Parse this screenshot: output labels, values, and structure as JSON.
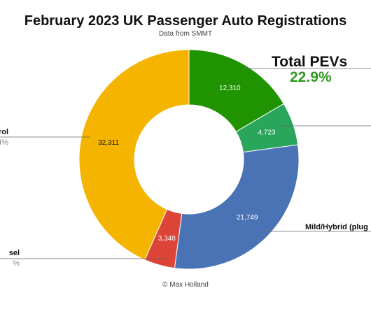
{
  "chart_data": {
    "type": "pie",
    "title": "February 2023 UK Passenger Auto Registrations",
    "subtitle": "Data from SMMT",
    "total_label": "Total PEVs",
    "total_value": "22.9%",
    "credit": "© Max Holland",
    "slices": [
      {
        "value": 12310,
        "label": "12,310",
        "color": "#1f9400",
        "text_color": "#ffffff"
      },
      {
        "value": 4723,
        "label": "4,723",
        "color": "#2aa55c",
        "text_color": "#ffffff"
      },
      {
        "value": 21749,
        "label": "21,749",
        "color": "#4a73b6",
        "text_color": "#ffffff",
        "legend": "Mild/Hybrid (plug",
        "legend_sub": ""
      },
      {
        "value": 3348,
        "label": "3,348",
        "color": "#db4437",
        "text_color": "#ffffff",
        "legend": "sel",
        "legend_sub": "%"
      },
      {
        "value": 32311,
        "label": "32,311",
        "color": "#f4b400",
        "text_color": "#111111",
        "legend": "rol",
        "legend_sub": "4%"
      }
    ]
  }
}
